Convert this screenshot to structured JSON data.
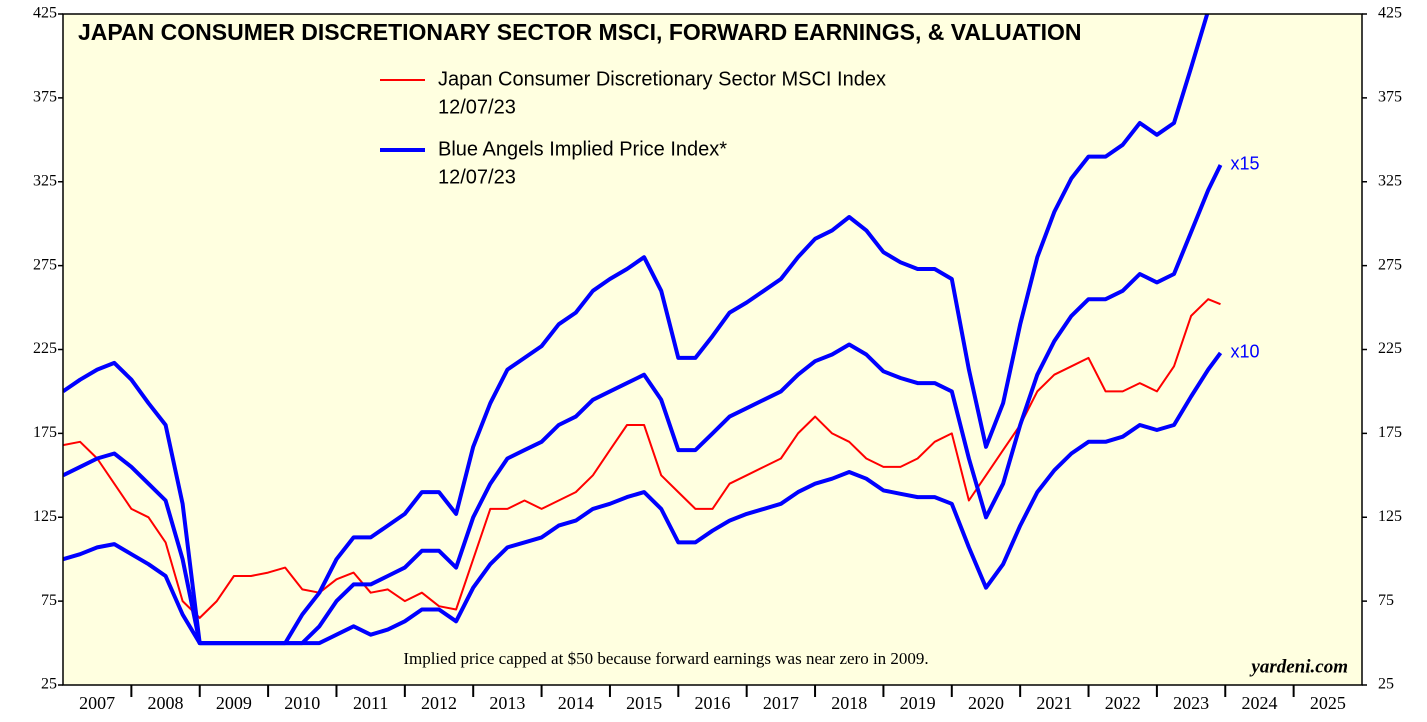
{
  "chart_data": {
    "type": "line",
    "title": "JAPAN CONSUMER DISCRETIONARY SECTOR MSCI, FORWARD EARNINGS, & VALUATION",
    "annotations": [
      "Implied price capped at $50 because forward earnings was near zero in 2009.",
      "yardeni.com"
    ],
    "categories": [
      "2007",
      "2008",
      "2009",
      "2010",
      "2011",
      "2012",
      "2013",
      "2014",
      "2015",
      "2016",
      "2017",
      "2018",
      "2019",
      "2020",
      "2021",
      "2022",
      "2023",
      "2024",
      "2025"
    ],
    "xlim": [
      2007,
      2026
    ],
    "xticks": [
      2008,
      2009,
      2010,
      2011,
      2012,
      2013,
      2014,
      2015,
      2016,
      2017,
      2018,
      2019,
      2020,
      2021,
      2022,
      2023,
      2024,
      2025
    ],
    "ylim": [
      25,
      425
    ],
    "yticks": [
      25,
      75,
      125,
      175,
      225,
      275,
      325,
      375,
      425
    ],
    "x": [
      2007,
      2007.25,
      2007.5,
      2007.75,
      2008,
      2008.25,
      2008.5,
      2008.75,
      2009,
      2009.25,
      2009.5,
      2009.75,
      2010,
      2010.25,
      2010.5,
      2010.75,
      2011,
      2011.25,
      2011.5,
      2011.75,
      2012,
      2012.25,
      2012.5,
      2012.75,
      2013,
      2013.25,
      2013.5,
      2013.75,
      2014,
      2014.25,
      2014.5,
      2014.75,
      2015,
      2015.25,
      2015.5,
      2015.75,
      2016,
      2016.25,
      2016.5,
      2016.75,
      2017,
      2017.25,
      2017.5,
      2017.75,
      2018,
      2018.25,
      2018.5,
      2018.75,
      2019,
      2019.25,
      2019.5,
      2019.75,
      2020,
      2020.25,
      2020.5,
      2020.75,
      2021,
      2021.25,
      2021.5,
      2021.75,
      2022,
      2022.25,
      2022.5,
      2022.75,
      2023,
      2023.25,
      2023.5,
      2023.75,
      2023.93
    ],
    "series": [
      {
        "name": "Japan Consumer Discretionary Sector MSCI Index",
        "date": "12/07/23",
        "color": "#ff0000",
        "width": 2,
        "values": [
          168,
          170,
          160,
          145,
          130,
          125,
          110,
          75,
          65,
          75,
          90,
          90,
          92,
          95,
          82,
          80,
          88,
          92,
          80,
          82,
          75,
          80,
          72,
          70,
          100,
          130,
          130,
          135,
          130,
          135,
          140,
          150,
          165,
          180,
          180,
          150,
          140,
          130,
          130,
          145,
          150,
          155,
          160,
          175,
          185,
          175,
          170,
          160,
          155,
          155,
          160,
          170,
          175,
          135,
          150,
          165,
          180,
          200,
          210,
          215,
          220,
          200,
          200,
          205,
          200,
          215,
          245,
          255,
          252
        ]
      },
      {
        "color": "#0000ff",
        "width": 4,
        "values": [
          200,
          207,
          213,
          217,
          207,
          193,
          180,
          133,
          50,
          50,
          50,
          50,
          50,
          50,
          67,
          80,
          100,
          113,
          113,
          120,
          127,
          140,
          140,
          127,
          167,
          193,
          213,
          220,
          227,
          240,
          247,
          260,
          267,
          273,
          280,
          260,
          220,
          220,
          233,
          247,
          253,
          260,
          267,
          280,
          291,
          296,
          304,
          296,
          283,
          277,
          273,
          273,
          267,
          213,
          167,
          193,
          240,
          280,
          307,
          327,
          340,
          340,
          347,
          360,
          353,
          360,
          393,
          427,
          447
        ]
      },
      {
        "name": "Blue Angels Implied Price Index*",
        "date": "12/07/23",
        "label": "x15",
        "color": "#0000ff",
        "width": 4,
        "values": [
          150,
          155,
          160,
          163,
          155,
          145,
          135,
          100,
          50,
          50,
          50,
          50,
          50,
          50,
          50,
          60,
          75,
          85,
          85,
          90,
          95,
          105,
          105,
          95,
          125,
          145,
          160,
          165,
          170,
          180,
          185,
          195,
          200,
          205,
          210,
          195,
          165,
          165,
          175,
          185,
          190,
          195,
          200,
          210,
          218,
          222,
          228,
          222,
          212,
          208,
          205,
          205,
          200,
          160,
          125,
          145,
          180,
          210,
          230,
          245,
          255,
          255,
          260,
          270,
          265,
          270,
          295,
          320,
          335
        ]
      },
      {
        "label": "x10",
        "color": "#0000ff",
        "width": 4,
        "values": [
          100,
          103,
          107,
          109,
          103,
          97,
          90,
          67,
          50,
          50,
          50,
          50,
          50,
          50,
          50,
          50,
          55,
          60,
          55,
          58,
          63,
          70,
          70,
          63,
          83,
          97,
          107,
          110,
          113,
          120,
          123,
          130,
          133,
          137,
          140,
          130,
          110,
          110,
          117,
          123,
          127,
          130,
          133,
          140,
          145,
          148,
          152,
          148,
          141,
          139,
          137,
          137,
          133,
          107,
          83,
          97,
          120,
          140,
          153,
          163,
          170,
          170,
          173,
          180,
          177,
          180,
          197,
          213,
          223
        ]
      }
    ]
  }
}
